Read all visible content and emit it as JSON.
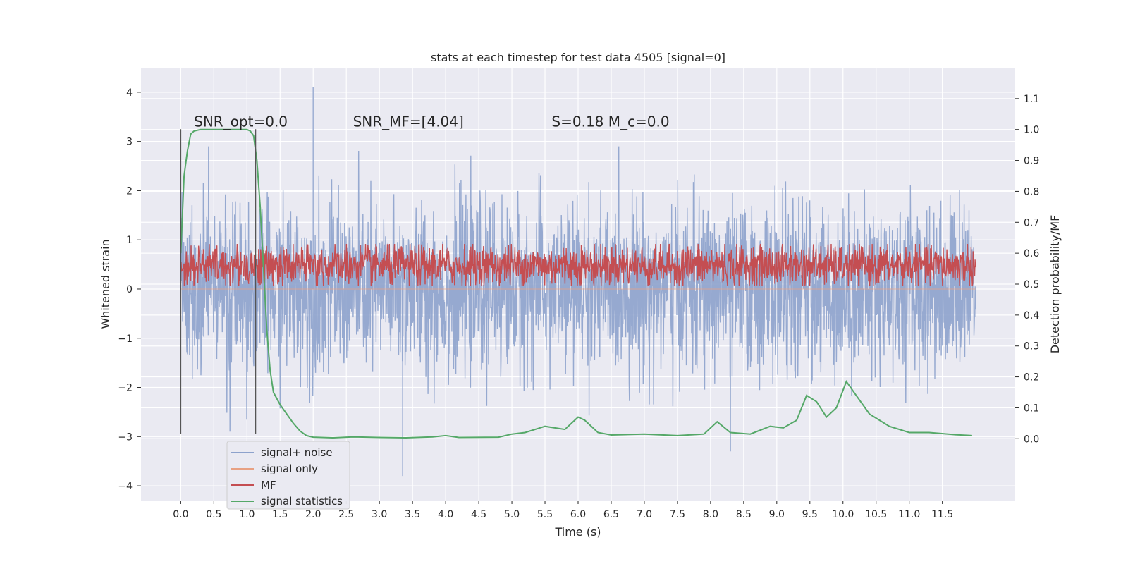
{
  "chart_data": {
    "type": "line",
    "title": "stats at each timestep for test data 4505 [signal=0]",
    "xlabel": "Time (s)",
    "ylabel_left": "Whitened strain",
    "ylabel_right": "Detection probability/MF",
    "xlim": [
      -0.6,
      12.6
    ],
    "ylim_left": [
      -4.3,
      4.5
    ],
    "ylim_right": [
      -0.2,
      1.2
    ],
    "x_ticks": [
      0.0,
      0.5,
      1.0,
      1.5,
      2.0,
      2.5,
      3.0,
      3.5,
      4.0,
      4.5,
      5.0,
      5.5,
      6.0,
      6.5,
      7.0,
      7.5,
      8.0,
      8.5,
      9.0,
      9.5,
      10.0,
      10.5,
      11.0,
      11.5
    ],
    "x_tick_labels": [
      "0.0",
      "0.5",
      "1.0",
      "1.5",
      "2.0",
      "2.5",
      "3.0",
      "3.5",
      "4.0",
      "4.5",
      "5.0",
      "5.5",
      "6.0",
      "6.5",
      "7.0",
      "7.5",
      "8.0",
      "8.5",
      "9.0",
      "9.5",
      "10.0",
      "10.5",
      "11.0",
      "11.5"
    ],
    "y_left_ticks": [
      -4,
      -3,
      -2,
      -1,
      0,
      1,
      2,
      3,
      4
    ],
    "y_left_tick_labels": [
      "−4",
      "−3",
      "−2",
      "−1",
      "0",
      "1",
      "2",
      "3",
      "4"
    ],
    "y_right_ticks": [
      0.0,
      0.1,
      0.2,
      0.3,
      0.4,
      0.5,
      0.6,
      0.7,
      0.8,
      0.9,
      1.0,
      1.1
    ],
    "y_right_tick_labels": [
      "0.0",
      "0.1",
      "0.2",
      "0.3",
      "0.4",
      "0.5",
      "0.6",
      "0.7",
      "0.8",
      "0.9",
      "1.0",
      "1.1"
    ],
    "grid": true,
    "legend_position": "lower-left",
    "legend": [
      {
        "label": "signal+ noise",
        "color": "#8da2cc"
      },
      {
        "label": "signal only",
        "color": "#e8a183"
      },
      {
        "label": "MF",
        "color": "#c44e52"
      },
      {
        "label": "signal statistics",
        "color": "#55a868"
      }
    ],
    "annotations": [
      {
        "text": "SNR_opt=0.0",
        "x": 0.2,
        "y": 3.3
      },
      {
        "text": "SNR_MF=[4.04]",
        "x": 2.6,
        "y": 3.3
      },
      {
        "text": "S=0.18   M_c=0.0",
        "x": 5.6,
        "y": 3.3
      }
    ],
    "vertical_lines": [
      {
        "x": 0.0,
        "ymin": -2.95,
        "ymax": 3.25
      },
      {
        "x": 1.13,
        "ymin": -2.95,
        "ymax": 3.25
      }
    ],
    "series": [
      {
        "name": "signal+ noise",
        "color": "#8da2cc",
        "axis": "left",
        "description": "whitened noise, approx. Gaussian, sigma ~0.8, sampled 0–12 s",
        "x_range": [
          0.0,
          12.0
        ],
        "envelope": [
          -2.9,
          2.9
        ],
        "peaks": [
          {
            "x": 2.0,
            "y": 4.1
          },
          {
            "x": 3.35,
            "y": -3.8
          },
          {
            "x": 8.3,
            "y": -3.3
          }
        ]
      },
      {
        "name": "signal only",
        "color": "#e8a183",
        "axis": "left",
        "description": "zero (no injected signal)",
        "x_range": [
          0.0,
          12.0
        ],
        "values_constant": 0
      },
      {
        "name": "MF",
        "color": "#c44e52",
        "axis": "right",
        "description": "matched-filter output fluctuating between ~0.5 and ~0.6",
        "x_range": [
          0.0,
          12.0
        ],
        "band": [
          0.5,
          0.62
        ]
      },
      {
        "name": "signal statistics",
        "color": "#55a868",
        "axis": "right",
        "x": [
          0.0,
          0.05,
          0.1,
          0.15,
          0.2,
          0.3,
          0.5,
          0.8,
          1.0,
          1.05,
          1.1,
          1.15,
          1.2,
          1.25,
          1.3,
          1.35,
          1.4,
          1.5,
          1.6,
          1.7,
          1.8,
          1.9,
          2.0,
          2.3,
          2.6,
          3.0,
          3.4,
          3.8,
          4.0,
          4.2,
          4.8,
          5.0,
          5.2,
          5.5,
          5.8,
          6.0,
          6.1,
          6.3,
          6.5,
          7.0,
          7.5,
          7.9,
          8.1,
          8.3,
          8.6,
          8.9,
          9.1,
          9.3,
          9.45,
          9.6,
          9.75,
          9.9,
          10.05,
          10.2,
          10.4,
          10.7,
          11.0,
          11.3,
          11.7,
          11.95
        ],
        "y": [
          0.6,
          0.85,
          0.93,
          0.985,
          0.995,
          1.0,
          1.0,
          1.0,
          1.0,
          0.995,
          0.98,
          0.9,
          0.75,
          0.55,
          0.35,
          0.22,
          0.15,
          0.11,
          0.08,
          0.05,
          0.025,
          0.01,
          0.005,
          0.003,
          0.006,
          0.004,
          0.003,
          0.006,
          0.01,
          0.004,
          0.005,
          0.015,
          0.02,
          0.04,
          0.03,
          0.07,
          0.06,
          0.02,
          0.012,
          0.015,
          0.01,
          0.015,
          0.055,
          0.02,
          0.015,
          0.04,
          0.035,
          0.06,
          0.14,
          0.12,
          0.07,
          0.1,
          0.185,
          0.14,
          0.08,
          0.04,
          0.02,
          0.02,
          0.013,
          0.01
        ]
      }
    ]
  }
}
